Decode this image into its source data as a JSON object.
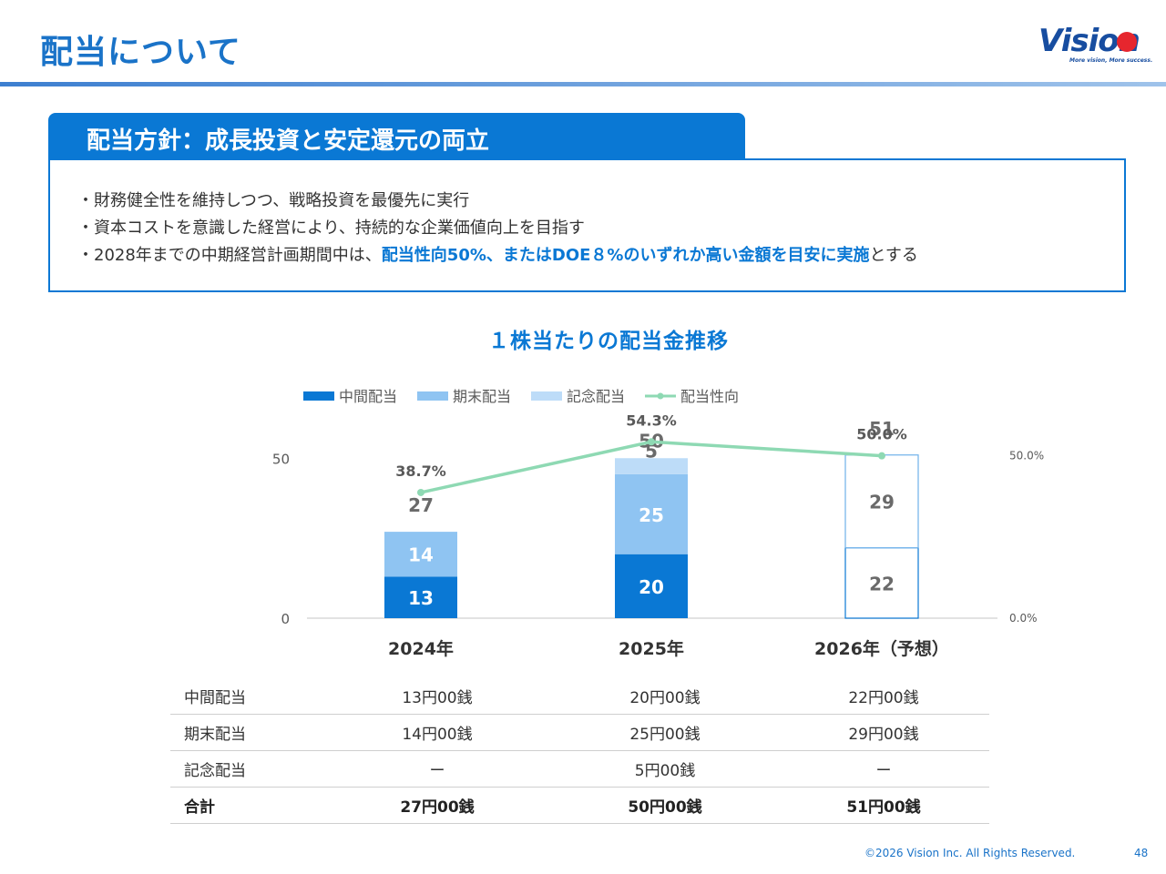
{
  "header": {
    "title": "配当について",
    "logo_text": "Vision",
    "logo_tagline": "More vision, More success."
  },
  "policy": {
    "title": "配当方針：成長投資と安定還元の両立",
    "bullets": [
      {
        "before": "・財務健全性を維持しつつ、戦略投資を最優先に実行",
        "highlight": "",
        "after": ""
      },
      {
        "before": "・資本コストを意識した経営により、持続的な企業価値向上を目指す",
        "highlight": "",
        "after": ""
      },
      {
        "before": "・2028年までの中期経営計画期間中は、",
        "highlight": "配当性向50%、またはDOE８%のいずれか高い金額を目安に実施",
        "after": "とする"
      }
    ]
  },
  "chart_data": {
    "type": "bar",
    "title": "１株当たりの配当金推移",
    "stacked": true,
    "categories": [
      "2024年",
      "2025年",
      "2026年（予想）"
    ],
    "series": [
      {
        "name": "中間配当",
        "values": [
          13,
          20,
          22
        ],
        "color": "#0a78d4"
      },
      {
        "name": "期末配当",
        "values": [
          14,
          25,
          29
        ],
        "color": "#8fc4f2"
      },
      {
        "name": "記念配当",
        "values": [
          0,
          5,
          0
        ],
        "color": "#bddcf8"
      }
    ],
    "totals": [
      27,
      50,
      51
    ],
    "forecast_index": 2,
    "line_series": {
      "name": "配当性向",
      "values": [
        38.7,
        54.3,
        50.0
      ],
      "labels": [
        "38.7%",
        "54.3%",
        "50.0%"
      ],
      "color": "#8ed9b3"
    },
    "left_axis": {
      "ticks": [
        "0",
        "50"
      ],
      "tick_values": [
        0,
        50
      ],
      "range": [
        0,
        68
      ]
    },
    "right_axis": {
      "ticks": [
        "0.0%",
        "50.0%"
      ],
      "tick_values": [
        0,
        50
      ],
      "range": [
        0,
        67
      ]
    },
    "legend_position": "top"
  },
  "table": {
    "rows": [
      {
        "label": "中間配当",
        "values": [
          "13円00銭",
          "20円00銭",
          "22円00銭"
        ],
        "total": false
      },
      {
        "label": "期末配当",
        "values": [
          "14円00銭",
          "25円00銭",
          "29円00銭"
        ],
        "total": false
      },
      {
        "label": "記念配当",
        "values": [
          "ー",
          "5円00銭",
          "ー"
        ],
        "total": false
      },
      {
        "label": "合計",
        "values": [
          "27円00銭",
          "50円00銭",
          "51円00銭"
        ],
        "total": true
      }
    ]
  },
  "footer": {
    "copyright": "©2026 Vision Inc. All Rights Reserved.",
    "page": "48"
  },
  "colors": {
    "accent": "#0a78d4",
    "title": "#1a73c8",
    "logo_red": "#e6262e"
  }
}
